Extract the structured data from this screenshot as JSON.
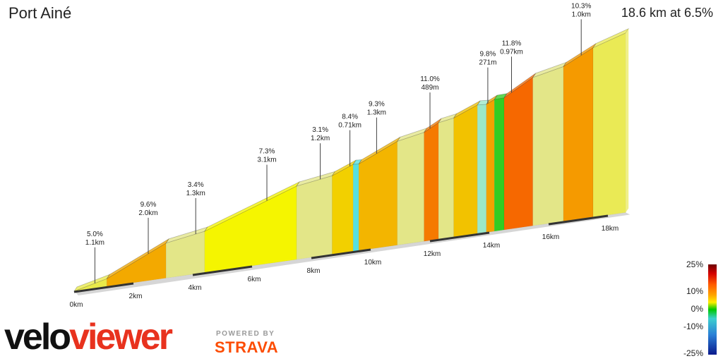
{
  "header": {
    "title": "Port Ainé",
    "summary": "18.6 km at 6.5%"
  },
  "chart_data": {
    "type": "area",
    "title": "Port Ainé",
    "xlabel": "",
    "ylabel": "",
    "x_unit": "km",
    "xlim": [
      0,
      18.6
    ],
    "x_ticks": [
      "0km",
      "2km",
      "4km",
      "6km",
      "8km",
      "10km",
      "12km",
      "14km",
      "16km",
      "18km"
    ],
    "segments": [
      {
        "start_km": 0.0,
        "end_km": 1.1,
        "gradient": 5.0,
        "color": "#e9ea4a"
      },
      {
        "start_km": 1.1,
        "end_km": 3.1,
        "gradient": 9.6,
        "color": "#f3a900"
      },
      {
        "start_km": 3.1,
        "end_km": 4.4,
        "gradient": 3.4,
        "color": "#e3e688"
      },
      {
        "start_km": 4.4,
        "end_km": 7.5,
        "gradient": 7.3,
        "color": "#f5f500"
      },
      {
        "start_km": 7.5,
        "end_km": 8.7,
        "gradient": 3.1,
        "color": "#e3e688"
      },
      {
        "start_km": 8.7,
        "end_km": 9.41,
        "gradient": 8.4,
        "color": "#f2d000"
      },
      {
        "start_km": 9.41,
        "end_km": 9.6,
        "gradient": -1.5,
        "color": "#55e0e0"
      },
      {
        "start_km": 9.6,
        "end_km": 10.9,
        "gradient": 9.3,
        "color": "#f3b500"
      },
      {
        "start_km": 10.9,
        "end_km": 11.8,
        "gradient": 4.0,
        "color": "#e3e688"
      },
      {
        "start_km": 11.8,
        "end_km": 12.289,
        "gradient": 11.0,
        "color": "#f57a00"
      },
      {
        "start_km": 12.289,
        "end_km": 12.8,
        "gradient": 3.5,
        "color": "#e3e688"
      },
      {
        "start_km": 12.8,
        "end_km": 13.6,
        "gradient": 8.5,
        "color": "#f2c200"
      },
      {
        "start_km": 13.6,
        "end_km": 13.9,
        "gradient": -1.5,
        "color": "#9be8c8"
      },
      {
        "start_km": 13.9,
        "end_km": 14.171,
        "gradient": 9.8,
        "color": "#f3a200"
      },
      {
        "start_km": 14.171,
        "end_km": 14.5,
        "gradient": 0.5,
        "color": "#33cc22"
      },
      {
        "start_km": 14.5,
        "end_km": 15.47,
        "gradient": 11.8,
        "color": "#f66800"
      },
      {
        "start_km": 15.47,
        "end_km": 16.5,
        "gradient": 4.5,
        "color": "#e3e688"
      },
      {
        "start_km": 16.5,
        "end_km": 17.5,
        "gradient": 10.3,
        "color": "#f59a00"
      },
      {
        "start_km": 17.5,
        "end_km": 18.6,
        "gradient": 6.5,
        "color": "#eaea55"
      }
    ],
    "annotations": [
      {
        "at_km": 0.7,
        "grade": "5.0%",
        "length": "1.1km"
      },
      {
        "at_km": 2.5,
        "grade": "9.6%",
        "length": "2.0km"
      },
      {
        "at_km": 4.1,
        "grade": "3.4%",
        "length": "1.3km"
      },
      {
        "at_km": 6.5,
        "grade": "7.3%",
        "length": "3.1km"
      },
      {
        "at_km": 8.3,
        "grade": "3.1%",
        "length": "1.2km"
      },
      {
        "at_km": 9.3,
        "grade": "8.4%",
        "length": "0.71km"
      },
      {
        "at_km": 10.2,
        "grade": "9.3%",
        "length": "1.3km"
      },
      {
        "at_km": 12.0,
        "grade": "11.0%",
        "length": "489m"
      },
      {
        "at_km": 13.95,
        "grade": "9.8%",
        "length": "271m"
      },
      {
        "at_km": 14.75,
        "grade": "11.8%",
        "length": "0.97km"
      },
      {
        "at_km": 17.1,
        "grade": "10.3%",
        "length": "1.0km"
      }
    ],
    "legend": {
      "placement": "bottom-right",
      "labels": [
        "25%",
        "10%",
        "0%",
        "-10%",
        "-25%"
      ]
    }
  },
  "branding": {
    "logo_velo": "velo",
    "logo_viewer": "viewer",
    "powered_by": "POWERED BY",
    "strava": "STRAVA"
  }
}
